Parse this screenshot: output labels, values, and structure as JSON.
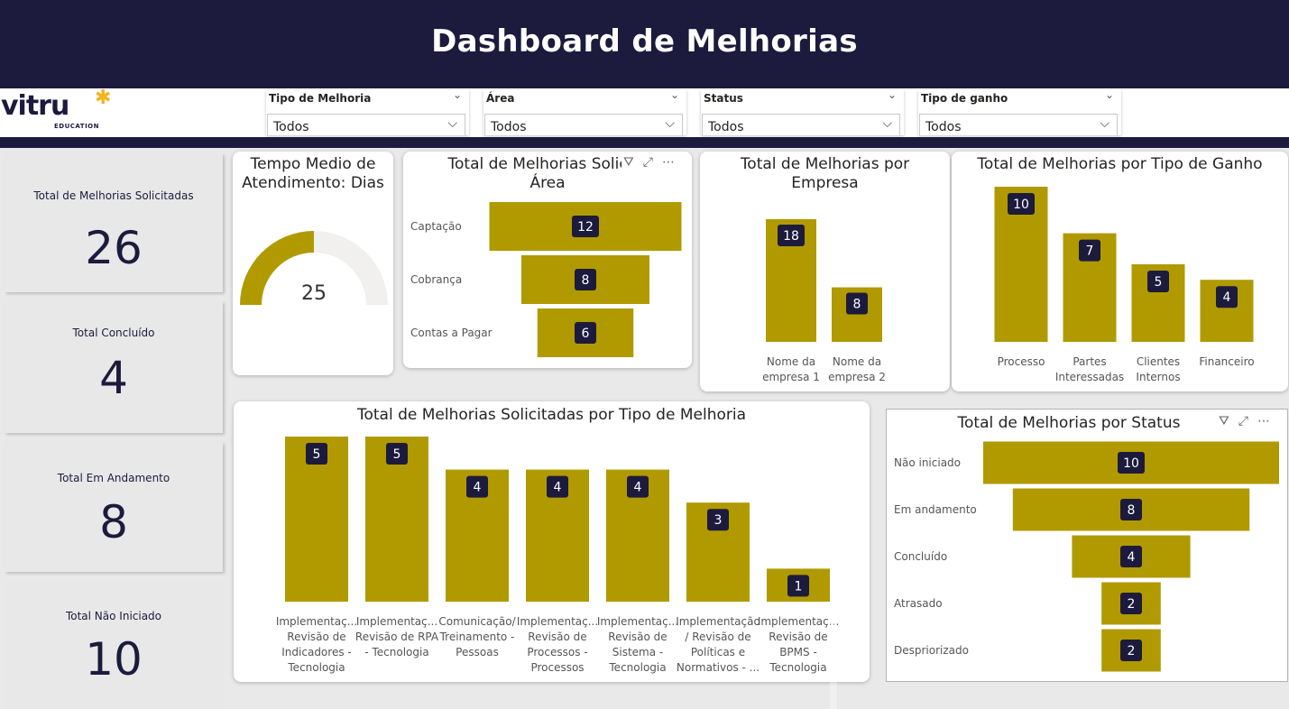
{
  "header": {
    "title": "Dashboard de Melhorias"
  },
  "logo": {
    "text": "vitru",
    "subtitle": "EDUCATION"
  },
  "filters": [
    {
      "label": "Tipo de Melhoria",
      "value": "Todos"
    },
    {
      "label": "Área",
      "value": "Todos"
    },
    {
      "label": "Status",
      "value": "Todos"
    },
    {
      "label": "Tipo de ganho",
      "value": "Todos"
    }
  ],
  "kpis": [
    {
      "label": "Total de Melhorias Solicitadas",
      "value": "26"
    },
    {
      "label": "Total Concluído",
      "value": "4"
    },
    {
      "label": "Total Em Andamento",
      "value": "8"
    },
    {
      "label": "Total Não Iniciado",
      "value": "10"
    }
  ],
  "colors": {
    "bar": "#b09a00",
    "badge": "#1c1b3d",
    "header": "#1c1b3d",
    "gauge_track": "#f1f0ef"
  },
  "icons": [
    "filter-icon",
    "focus-mode-icon",
    "more-options-icon",
    "chevron-down-icon"
  ],
  "gauge": {
    "title": "Tempo Medio de Atendimento: Dias",
    "value": "25",
    "fill_fraction": 0.5
  },
  "charts": {
    "area": {
      "title": "Total de Melhorias Solicitadas por Área",
      "visible_title": [
        "Total de Melhorias Solicita",
        "Área"
      ]
    },
    "empresa": {
      "title_lines": [
        "Total de Melhorias por",
        "Empresa"
      ]
    },
    "ganho": {
      "title": "Total de Melhorias por Tipo de Ganho"
    },
    "tipo": {
      "title": "Total de Melhorias Solicitadas por Tipo de Melhoria"
    },
    "status": {
      "title": "Total de Melhorias por Status"
    }
  },
  "chart_data": [
    {
      "id": "area",
      "type": "bar",
      "orientation": "funnel",
      "title": "Total de Melhorias Solicitadas por Área",
      "categories": [
        "Captação",
        "Cobrança",
        "Contas a Pagar"
      ],
      "values": [
        12,
        8,
        6
      ]
    },
    {
      "id": "empresa",
      "type": "bar",
      "title": "Total de Melhorias por Empresa",
      "categories": [
        [
          "Nome da",
          "empresa 1"
        ],
        [
          "Nome da",
          "empresa 2"
        ]
      ],
      "values": [
        18,
        8
      ]
    },
    {
      "id": "ganho",
      "type": "bar",
      "title": "Total de Melhorias por Tipo de Ganho",
      "categories": [
        [
          "Processo"
        ],
        [
          "Partes",
          "Interessadas"
        ],
        [
          "Clientes",
          "Internos"
        ],
        [
          "Financeiro"
        ]
      ],
      "values": [
        10,
        7,
        5,
        4
      ]
    },
    {
      "id": "tipo",
      "type": "bar",
      "title": "Total de Melhorias Solicitadas por Tipo de Melhoria",
      "categories": [
        [
          "Implementaç...",
          "Revisão de",
          "Indicadores -",
          "Tecnologia"
        ],
        [
          "Implementaç...",
          "Revisão de RPA",
          "- Tecnologia"
        ],
        [
          "Comunicação/",
          "Treinamento -",
          "Pessoas"
        ],
        [
          "Implementaç...",
          "Revisão de",
          "Processos -",
          "Processos"
        ],
        [
          "Implementaç...",
          "Revisão de",
          "Sistema -",
          "Tecnologia"
        ],
        [
          "Implementação",
          "/ Revisão de",
          "Políticas e",
          "Normativos - ..."
        ],
        [
          "Implementaç...",
          "Revisão de",
          "BPMS -",
          "Tecnologia"
        ]
      ],
      "values": [
        5,
        5,
        4,
        4,
        4,
        3,
        1
      ]
    },
    {
      "id": "status",
      "type": "bar",
      "orientation": "funnel",
      "title": "Total de Melhorias por Status",
      "categories": [
        "Não iniciado",
        "Em andamento",
        "Concluído",
        "Atrasado",
        "Despriorizado"
      ],
      "values": [
        10,
        8,
        4,
        2,
        2
      ]
    }
  ]
}
